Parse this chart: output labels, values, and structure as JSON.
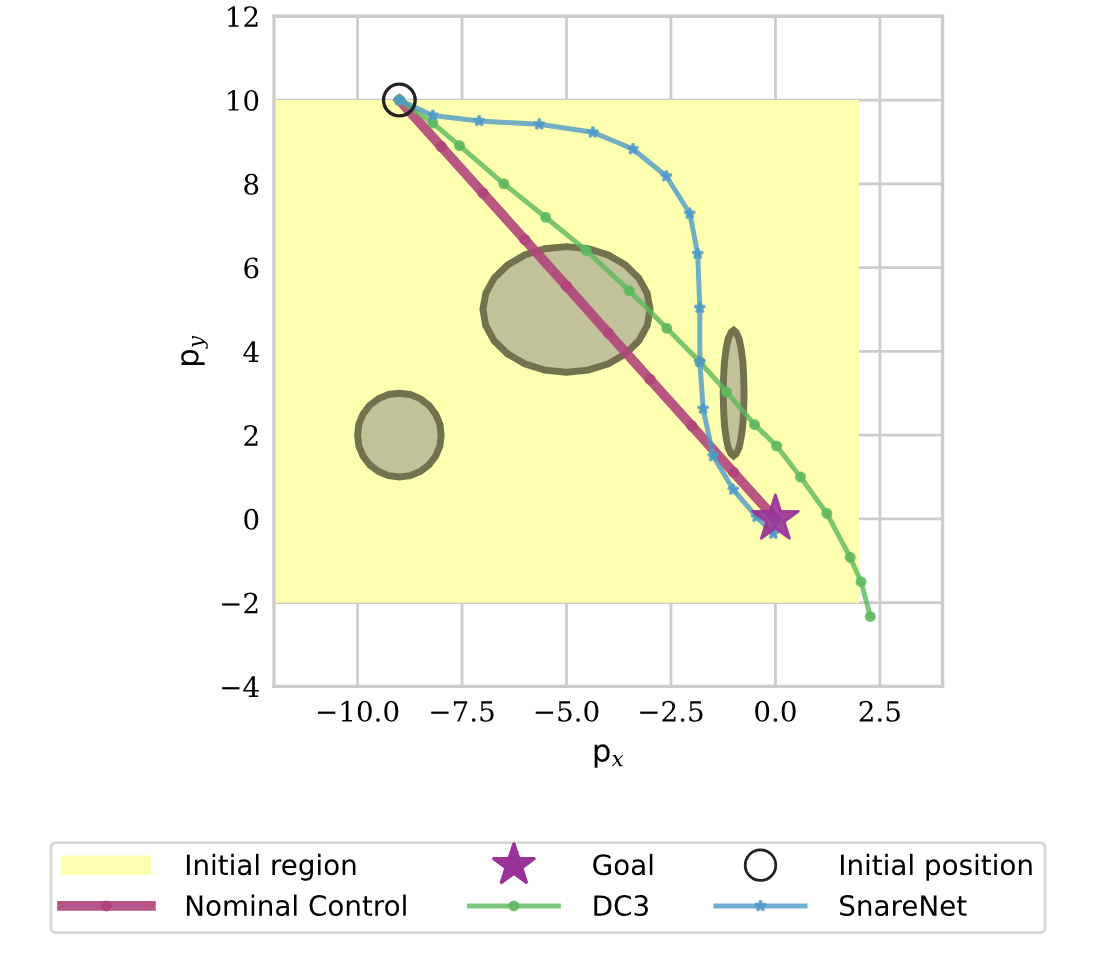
{
  "chart_data": {
    "type": "line",
    "xlabel": "p$_{x}$",
    "ylabel": "p$_{y}$",
    "xlim": [
      -12,
      4
    ],
    "ylim": [
      -4,
      12
    ],
    "xticks": [
      {
        "value": -10,
        "label": "−10.0"
      },
      {
        "value": -7.5,
        "label": "−7.5"
      },
      {
        "value": -5,
        "label": "−5.0"
      },
      {
        "value": -2.5,
        "label": "−2.5"
      },
      {
        "value": 0,
        "label": "0.0"
      },
      {
        "value": 2.5,
        "label": "2.5"
      }
    ],
    "yticks": [
      {
        "value": -4,
        "label": "−4"
      },
      {
        "value": -2,
        "label": "−2"
      },
      0,
      2,
      4,
      6,
      8,
      10,
      12
    ],
    "grid": true,
    "legend": "bottom",
    "series": [
      {
        "name": "Initial region",
        "type": "area",
        "color": "#ffffb0",
        "x": [
          -12,
          2,
          2,
          -12
        ],
        "values": [
          10,
          10,
          -2,
          -2
        ]
      },
      {
        "name": "Nominal Control",
        "color": "#b0457a",
        "marker": "circle",
        "line_style": "solid",
        "x": [
          -9,
          -8,
          -7,
          -6,
          -5,
          -4,
          -3,
          -2,
          -1,
          0
        ],
        "values": [
          10,
          8.89,
          7.78,
          6.67,
          5.56,
          4.44,
          3.33,
          2.22,
          1.11,
          0
        ]
      },
      {
        "name": "Goal",
        "type": "scatter",
        "color": "#993399",
        "marker": "star",
        "x": [
          0
        ],
        "values": [
          0
        ]
      },
      {
        "name": "DC3",
        "color": "#5cb85c",
        "marker": "circle",
        "line_style": "solid",
        "x": [
          -9,
          -8.2,
          -7.56,
          -6.5,
          -5.5,
          -4.53,
          -3.5,
          -2.6,
          -1.81,
          -1.17,
          -0.5,
          0.03,
          0.6,
          1.23,
          1.79,
          2.05,
          2.27
        ],
        "values": [
          10,
          9.45,
          8.91,
          8.0,
          7.2,
          6.41,
          5.45,
          4.55,
          3.75,
          3.03,
          2.25,
          1.74,
          1.0,
          0.13,
          -0.92,
          -1.5,
          -2.33
        ]
      },
      {
        "name": "Initial position",
        "type": "scatter",
        "color": "#222222",
        "marker": "circle",
        "x": [
          -9
        ],
        "values": [
          10
        ]
      },
      {
        "name": "SnareNet",
        "color": "#4e9ac8",
        "marker": "star",
        "line_style": "solid",
        "x": [
          -9,
          -8.2,
          -7.09,
          -5.65,
          -4.37,
          -3.41,
          -2.61,
          -2.05,
          -1.86,
          -1.81,
          -1.81,
          -1.73,
          -1.49,
          -1.01,
          -0.45,
          -0.05,
          0
        ],
        "values": [
          10,
          9.63,
          9.5,
          9.42,
          9.23,
          8.83,
          8.18,
          7.29,
          6.33,
          5.04,
          3.75,
          2.63,
          1.5,
          0.7,
          0.05,
          -0.35,
          0
        ]
      },
      {
        "type": "area",
        "color": "#bfbf99",
        "x": [
          -10,
          -9.97,
          -9.87,
          -9.71,
          -9.5,
          -9.26,
          -9,
          -8.74,
          -8.5,
          -8.29,
          -8.13,
          -8.03,
          -8,
          -8.03,
          -8.13,
          -8.29,
          -8.5,
          -8.74,
          -9,
          -9.26,
          -9.5,
          -9.71,
          -9.87,
          -9.97
        ],
        "values": [
          2,
          2.26,
          2.5,
          2.71,
          2.87,
          2.97,
          3,
          2.97,
          2.87,
          2.71,
          2.5,
          2.26,
          2,
          1.74,
          1.5,
          1.29,
          1.13,
          1.03,
          1,
          1.03,
          1.13,
          1.29,
          1.5,
          1.74
        ]
      },
      {
        "type": "area",
        "color": "#bfbf99",
        "x": [
          -7,
          -6.93,
          -6.73,
          -6.41,
          -6,
          -5.52,
          -5,
          -4.48,
          -4,
          -3.59,
          -3.27,
          -3.07,
          -3,
          -3.07,
          -3.27,
          -3.59,
          -4,
          -4.48,
          -5,
          -5.52,
          -6,
          -6.41,
          -6.73,
          -6.93
        ],
        "values": [
          5,
          5.39,
          5.75,
          6.06,
          6.3,
          6.45,
          6.5,
          6.45,
          6.3,
          6.06,
          5.75,
          5.39,
          5,
          4.61,
          4.25,
          3.94,
          3.7,
          3.55,
          3.5,
          3.55,
          3.7,
          3.94,
          4.25,
          4.61
        ]
      },
      {
        "type": "area",
        "color": "#bfbf99",
        "x": [
          -1.25,
          -1.24,
          -1.22,
          -1.18,
          -1.13,
          -1.06,
          -1,
          -0.94,
          -0.87,
          -0.82,
          -0.78,
          -0.76,
          -0.75,
          -0.76,
          -0.78,
          -0.82,
          -0.87,
          -0.94,
          -1,
          -1.06,
          -1.13,
          -1.18,
          -1.22,
          -1.24
        ],
        "values": [
          3,
          3.39,
          3.75,
          4.06,
          4.3,
          4.45,
          4.5,
          4.45,
          4.3,
          4.06,
          3.75,
          3.39,
          3,
          2.61,
          2.25,
          1.94,
          1.7,
          1.55,
          1.5,
          1.55,
          1.7,
          1.94,
          2.25,
          2.61
        ]
      }
    ]
  }
}
